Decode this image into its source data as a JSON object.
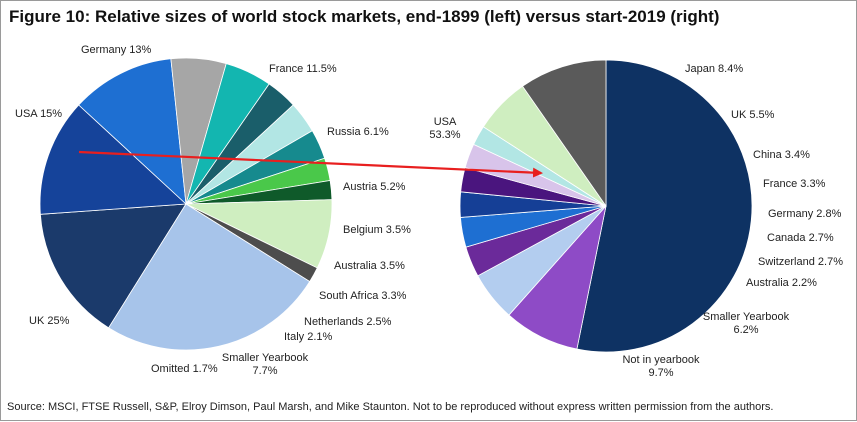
{
  "title": "Figure 10: Relative sizes of world stock markets, end-1899 (left) versus start-2019 (right)",
  "source": "Source: MSCI, FTSE Russell, S&P, Elroy Dimson, Paul Marsh, and Mike Staunton. Not to be reproduced without express written permission from the authors.",
  "chart_data": [
    {
      "type": "pie",
      "slices": [
        {
          "label": "USA",
          "value": 15,
          "text": "USA 15%",
          "color": "#1b3a6b"
        },
        {
          "label": "Germany",
          "value": 13,
          "text": "Germany 13%",
          "color": "#15439a"
        },
        {
          "label": "France",
          "value": 11.5,
          "text": "France 11.5%",
          "color": "#1e6fd2"
        },
        {
          "label": "Russia",
          "value": 6.1,
          "text": "Russia 6.1%",
          "color": "#a6a6a6"
        },
        {
          "label": "Austria",
          "value": 5.2,
          "text": "Austria 5.2%",
          "color": "#13b6b0"
        },
        {
          "label": "Belgium",
          "value": 3.5,
          "text": "Belgium 3.5%",
          "color": "#1a5e6a"
        },
        {
          "label": "Australia",
          "value": 3.5,
          "text": "Australia 3.5%",
          "color": "#b2e6e4"
        },
        {
          "label": "South Africa",
          "value": 3.3,
          "text": "South Africa 3.3%",
          "color": "#168a8e"
        },
        {
          "label": "Netherlands",
          "value": 2.5,
          "text": "Netherlands 2.5%",
          "color": "#4ac84a"
        },
        {
          "label": "Italy",
          "value": 2.1,
          "text": "Italy 2.1%",
          "color": "#0f5a2a"
        },
        {
          "label": "Smaller Yearbook",
          "value": 7.7,
          "text": "Smaller Yearbook 7.7%",
          "color": "#cfeec0"
        },
        {
          "label": "Omitted",
          "value": 1.7,
          "text": "Omitted 1.7%",
          "color": "#4d4d4d"
        },
        {
          "label": "UK",
          "value": 25,
          "text": "UK 25%",
          "color": "#a7c4ea"
        }
      ]
    },
    {
      "type": "pie",
      "slices": [
        {
          "label": "USA",
          "value": 53.3,
          "text": "USA 53.3%",
          "color": "#0e3263"
        },
        {
          "label": "Japan",
          "value": 8.4,
          "text": "Japan 8.4%",
          "color": "#8e4bc6"
        },
        {
          "label": "UK",
          "value": 5.5,
          "text": "UK 5.5%",
          "color": "#b3cdef"
        },
        {
          "label": "China",
          "value": 3.4,
          "text": "China 3.4%",
          "color": "#6b2a9a"
        },
        {
          "label": "France",
          "value": 3.3,
          "text": "France 3.3%",
          "color": "#1e6fd2"
        },
        {
          "label": "Germany",
          "value": 2.8,
          "text": "Germany 2.8%",
          "color": "#153f96"
        },
        {
          "label": "Canada",
          "value": 2.7,
          "text": "Canada 2.7%",
          "color": "#4a157e"
        },
        {
          "label": "Switzerland",
          "value": 2.7,
          "text": "Switzerland 2.7%",
          "color": "#d8c4ea"
        },
        {
          "label": "Australia",
          "value": 2.2,
          "text": "Australia 2.2%",
          "color": "#b2e6e4"
        },
        {
          "label": "Smaller Yearbook",
          "value": 6.2,
          "text": "Smaller Yearbook 6.2%",
          "color": "#cfeec0"
        },
        {
          "label": "Not in yearbook",
          "value": 9.7,
          "text": "Not in yearbook 9.7%",
          "color": "#5a5a5a"
        }
      ]
    }
  ],
  "arrow_color": "#e81f1f"
}
